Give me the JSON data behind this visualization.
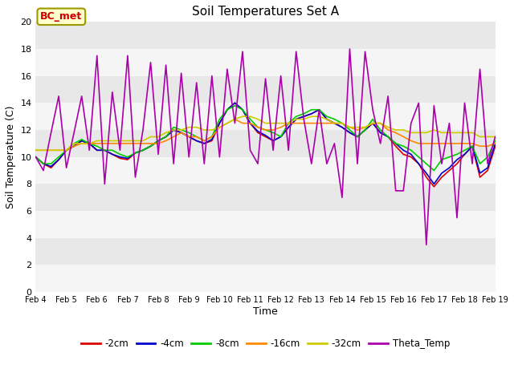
{
  "title": "Soil Temperatures Set A",
  "xlabel": "Time",
  "ylabel": "Soil Temperature (C)",
  "ylim": [
    0,
    20
  ],
  "annotation": "BC_met",
  "x_labels": [
    "Feb 4",
    "Feb 5",
    "Feb 6",
    "Feb 7",
    "Feb 8",
    "Feb 9",
    "Feb 10",
    "Feb 11",
    "Feb 12",
    "Feb 13",
    "Feb 14",
    "Feb 15",
    "Feb 16",
    "Feb 17",
    "Feb 18",
    "Feb 19"
  ],
  "bg_color": "#ebebeb",
  "bg_color2": "#f5f5f5",
  "series": {
    "-2cm": {
      "color": "#dd0000",
      "values_y": [
        10.0,
        9.5,
        9.2,
        9.8,
        10.5,
        10.8,
        11.2,
        11.0,
        10.5,
        10.5,
        10.2,
        9.9,
        9.8,
        10.3,
        10.5,
        10.8,
        11.2,
        11.5,
        12.0,
        11.8,
        11.5,
        11.2,
        11.0,
        11.2,
        12.5,
        13.5,
        14.0,
        13.5,
        12.5,
        11.8,
        11.5,
        11.2,
        11.5,
        12.2,
        12.8,
        13.0,
        13.2,
        13.5,
        12.8,
        12.5,
        12.2,
        11.8,
        11.5,
        12.0,
        12.5,
        11.8,
        11.5,
        10.8,
        10.2,
        10.0,
        9.5,
        8.5,
        7.8,
        8.5,
        9.0,
        9.5,
        10.2,
        10.8,
        8.5,
        9.0,
        10.8
      ]
    },
    "-4cm": {
      "color": "#0000cc",
      "values_y": [
        10.0,
        9.5,
        9.3,
        9.8,
        10.5,
        10.8,
        11.2,
        11.0,
        10.5,
        10.5,
        10.2,
        10.0,
        9.9,
        10.3,
        10.5,
        10.8,
        11.2,
        11.5,
        12.0,
        11.8,
        11.5,
        11.2,
        11.0,
        11.3,
        12.5,
        13.5,
        14.0,
        13.5,
        12.5,
        11.9,
        11.6,
        11.2,
        11.5,
        12.2,
        12.8,
        13.0,
        13.2,
        13.5,
        12.8,
        12.5,
        12.2,
        11.8,
        11.5,
        12.0,
        12.5,
        11.8,
        11.5,
        11.0,
        10.5,
        10.2,
        9.5,
        8.8,
        8.0,
        8.8,
        9.2,
        9.8,
        10.2,
        10.8,
        8.8,
        9.2,
        11.0
      ]
    },
    "-8cm": {
      "color": "#00cc00",
      "values_y": [
        10.0,
        9.5,
        9.5,
        10.0,
        10.5,
        11.0,
        11.3,
        11.0,
        10.8,
        10.5,
        10.5,
        10.2,
        10.0,
        10.3,
        10.5,
        10.8,
        11.2,
        11.5,
        12.2,
        12.0,
        11.8,
        11.5,
        11.2,
        11.5,
        12.8,
        13.5,
        13.8,
        13.5,
        12.8,
        12.2,
        12.0,
        11.8,
        11.5,
        12.5,
        13.0,
        13.2,
        13.5,
        13.5,
        13.0,
        12.8,
        12.5,
        12.0,
        11.5,
        12.0,
        12.8,
        12.0,
        11.5,
        11.0,
        10.8,
        10.5,
        10.0,
        9.5,
        9.0,
        9.8,
        10.0,
        10.2,
        10.5,
        10.8,
        9.5,
        10.0,
        11.2
      ]
    },
    "-16cm": {
      "color": "#ff8800",
      "values_y": [
        10.5,
        10.5,
        10.5,
        10.5,
        10.5,
        10.8,
        11.0,
        11.0,
        11.0,
        11.0,
        11.0,
        11.0,
        11.0,
        11.0,
        11.0,
        11.0,
        11.0,
        11.2,
        11.5,
        11.8,
        11.5,
        11.5,
        11.2,
        11.5,
        12.2,
        12.5,
        12.8,
        12.5,
        12.5,
        12.2,
        12.0,
        12.0,
        12.2,
        12.5,
        12.5,
        12.5,
        12.5,
        12.5,
        12.5,
        12.5,
        12.5,
        12.2,
        12.0,
        12.2,
        12.5,
        12.5,
        12.0,
        11.8,
        11.5,
        11.2,
        11.0,
        11.0,
        11.0,
        11.0,
        11.0,
        11.0,
        11.0,
        11.0,
        10.8,
        10.8,
        11.0
      ]
    },
    "-32cm": {
      "color": "#cccc00",
      "values_y": [
        10.5,
        10.5,
        10.5,
        10.5,
        10.5,
        11.0,
        11.0,
        11.0,
        11.2,
        11.2,
        11.2,
        11.2,
        11.2,
        11.2,
        11.2,
        11.5,
        11.5,
        11.8,
        12.0,
        12.0,
        12.2,
        12.2,
        12.0,
        12.0,
        12.2,
        12.5,
        12.8,
        13.0,
        13.0,
        12.8,
        12.5,
        12.5,
        12.5,
        12.5,
        12.8,
        12.8,
        13.0,
        13.0,
        12.8,
        12.5,
        12.5,
        12.2,
        12.2,
        12.2,
        12.5,
        12.5,
        12.2,
        12.0,
        12.0,
        11.8,
        11.8,
        11.8,
        12.0,
        11.8,
        11.8,
        11.8,
        11.8,
        11.8,
        11.5,
        11.5,
        11.5
      ]
    },
    "Theta_Temp": {
      "color": "#aa00aa",
      "values_y": [
        10.0,
        9.0,
        11.8,
        14.5,
        9.2,
        11.8,
        14.5,
        10.5,
        17.5,
        8.0,
        14.8,
        10.5,
        17.5,
        8.5,
        12.0,
        17.0,
        10.2,
        16.8,
        9.5,
        16.2,
        10.0,
        15.5,
        9.5,
        16.0,
        10.0,
        16.5,
        12.5,
        17.8,
        10.5,
        9.5,
        15.8,
        10.5,
        16.0,
        10.5,
        17.8,
        12.8,
        9.5,
        13.5,
        9.5,
        11.0,
        7.0,
        18.0,
        9.5,
        17.8,
        13.5,
        11.0,
        14.5,
        7.5,
        7.5,
        12.5,
        14.0,
        3.5,
        13.8,
        9.5,
        12.5,
        5.5,
        14.0,
        9.5,
        16.5,
        9.5,
        11.5
      ]
    }
  }
}
